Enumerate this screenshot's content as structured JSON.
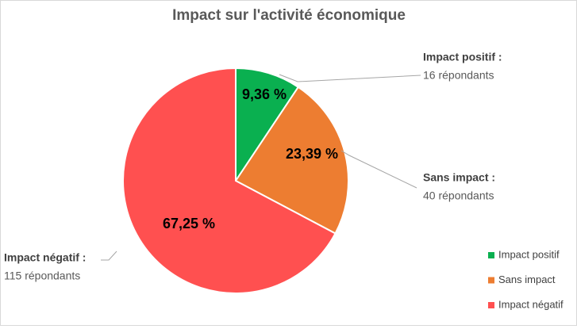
{
  "chart_data": {
    "type": "pie",
    "title": "Impact sur l'activité économique",
    "categories": [
      "Impact positif",
      "Sans impact",
      "Impact négatif"
    ],
    "values": [
      9.36,
      23.39,
      67.25
    ],
    "value_labels": [
      "9,36 %",
      "23,39 %",
      "67,25 %"
    ],
    "colors": [
      "#0ab050",
      "#ed7d31",
      "#ff5050"
    ],
    "callouts": [
      {
        "title": "Impact positif :",
        "detail": "16  répondants"
      },
      {
        "title": "Sans impact :",
        "detail": "40 répondants"
      },
      {
        "title": "Impact négatif :",
        "detail": "115 répondants"
      }
    ],
    "legend": "right"
  }
}
